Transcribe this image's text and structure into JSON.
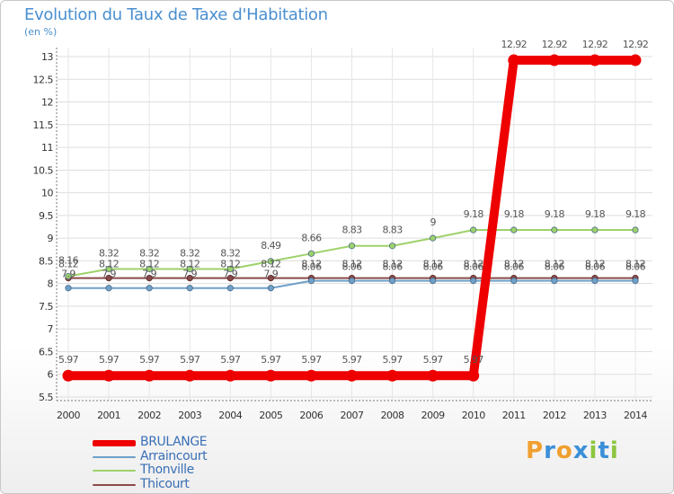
{
  "header": {
    "title": "Evolution du Taux de Taxe d'Habitation",
    "unit": "(en %)"
  },
  "chart_data": {
    "type": "line",
    "title": "Evolution du Taux de Taxe d'Habitation",
    "ylabel": "(en %)",
    "xlabel": "",
    "x": [
      "2000",
      "2001",
      "2002",
      "2003",
      "2004",
      "2005",
      "2006",
      "2007",
      "2008",
      "2009",
      "2010",
      "2011",
      "2012",
      "2013",
      "2014"
    ],
    "ylim": [
      5.5,
      13
    ],
    "yticks": [
      5.5,
      6,
      6.5,
      7,
      7.5,
      8,
      8.5,
      9,
      9.5,
      10,
      10.5,
      11,
      11.5,
      12,
      12.5,
      13
    ],
    "grid": true,
    "legend": "bottom-left",
    "series": [
      {
        "name": "BRULANGE",
        "color": "#ee0000",
        "values": [
          5.97,
          5.97,
          5.97,
          5.97,
          5.97,
          5.97,
          5.97,
          5.97,
          5.97,
          5.97,
          5.97,
          12.92,
          12.92,
          12.92,
          12.92
        ],
        "labels": [
          "5.97",
          "5.97",
          "5.97",
          "5.97",
          "5.97",
          "5.97",
          "5.97",
          "5.97",
          "5.97",
          "5.97",
          "5.97",
          "12.92",
          "12.92",
          "12.92",
          "12.92"
        ]
      },
      {
        "name": "Arraincourt",
        "color": "#6fa0c8",
        "values": [
          7.9,
          7.9,
          7.9,
          7.9,
          7.9,
          7.9,
          8.06,
          8.06,
          8.06,
          8.06,
          8.06,
          8.06,
          8.06,
          8.06,
          8.06
        ],
        "labels": [
          "7.9",
          "7.9",
          "7.9",
          "7.9",
          "7.9",
          "7.9",
          "8.06",
          "8.06",
          "8.06",
          "8.06",
          "8.06",
          "8.06",
          "8.06",
          "8.06",
          "8.06"
        ]
      },
      {
        "name": "Thonville",
        "color": "#9ed26a",
        "values": [
          8.16,
          8.32,
          8.32,
          8.32,
          8.32,
          8.49,
          8.66,
          8.83,
          8.83,
          9,
          9.18,
          9.18,
          9.18,
          9.18,
          9.18
        ],
        "labels": [
          "8.16",
          "8.32",
          "8.32",
          "8.32",
          "8.32",
          "8.49",
          "8.66",
          "8.83",
          "8.83",
          "9",
          "9.18",
          "9.18",
          "9.18",
          "9.18",
          "9.18"
        ]
      },
      {
        "name": "Thicourt",
        "color": "#8a4a4a",
        "values": [
          8.12,
          8.12,
          8.12,
          8.12,
          8.12,
          8.12,
          8.12,
          8.12,
          8.12,
          8.12,
          8.12,
          8.12,
          8.12,
          8.12,
          8.12
        ],
        "labels": [
          "8.12",
          "8.12",
          "8.12",
          "8.12",
          "8.12",
          "8.12",
          "8.12",
          "8.12",
          "8.12",
          "8.12",
          "8.12",
          "8.12",
          "8.12",
          "8.12",
          "8.12"
        ]
      }
    ]
  },
  "brand": {
    "letters": [
      "P",
      "r",
      "o",
      "x",
      "i",
      "t",
      "i"
    ],
    "colors": [
      "#f0a030",
      "#3b8fd8",
      "#f0a030",
      "#3b8fd8",
      "#8cc63f",
      "#3b8fd8",
      "#8cc63f"
    ]
  }
}
